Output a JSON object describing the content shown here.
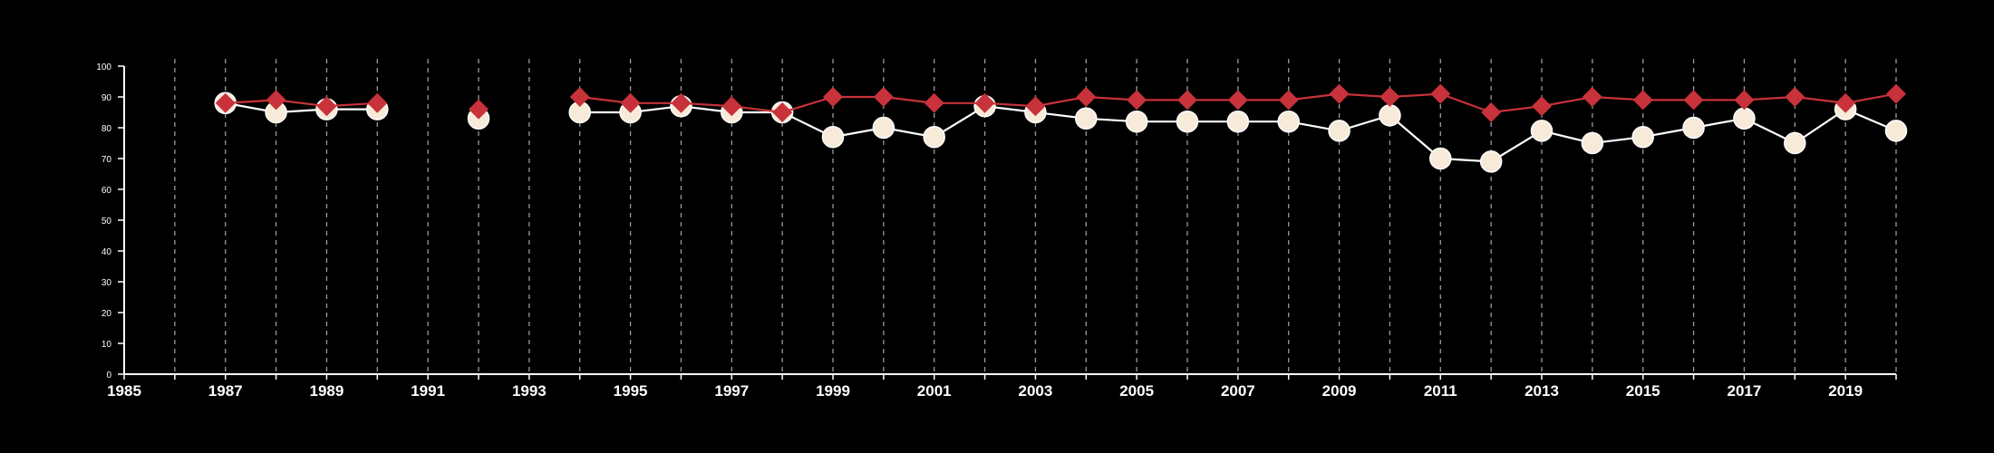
{
  "chart_data": {
    "type": "line",
    "title": "",
    "xlabel": "",
    "ylabel": "",
    "xlim": [
      1985,
      2020
    ],
    "ylim": [
      0,
      100
    ],
    "x_ticks": [
      "1985",
      "1987",
      "1989",
      "1991",
      "1993",
      "1995",
      "1997",
      "1999",
      "2001",
      "2003",
      "2005",
      "2007",
      "2009",
      "2011",
      "2013",
      "2015",
      "2017",
      "2019"
    ],
    "y_ticks": [
      "0",
      "10",
      "20",
      "30",
      "40",
      "50",
      "60",
      "70",
      "80",
      "90",
      "100"
    ],
    "grid": "vertical dashed lines at every year",
    "x": [
      1987,
      1988,
      1989,
      1990,
      1991,
      1992,
      1993,
      1994,
      1995,
      1996,
      1997,
      1998,
      1999,
      2000,
      2001,
      2002,
      2003,
      2004,
      2005,
      2006,
      2007,
      2008,
      2009,
      2010,
      2011,
      2012,
      2013,
      2014,
      2015,
      2016,
      2017,
      2018,
      2019,
      2020
    ],
    "series": [
      {
        "marker": "circle",
        "color": "#ffffff",
        "fill": "#f7ead9",
        "values": [
          88,
          85,
          86,
          86,
          null,
          83,
          null,
          85,
          85,
          87,
          85,
          85,
          77,
          80,
          77,
          87,
          85,
          83,
          82,
          82,
          82,
          82,
          79,
          84,
          70,
          69,
          79,
          75,
          77,
          80,
          83,
          75,
          86,
          79
        ]
      },
      {
        "marker": "diamond",
        "color": "#c8323a",
        "values": [
          88,
          89,
          87,
          88,
          null,
          86,
          null,
          90,
          88,
          88,
          87,
          85,
          90,
          90,
          88,
          88,
          87,
          90,
          89,
          89,
          89,
          89,
          91,
          90,
          91,
          85,
          87,
          90,
          89,
          89,
          89,
          90,
          88,
          91
        ]
      }
    ]
  }
}
